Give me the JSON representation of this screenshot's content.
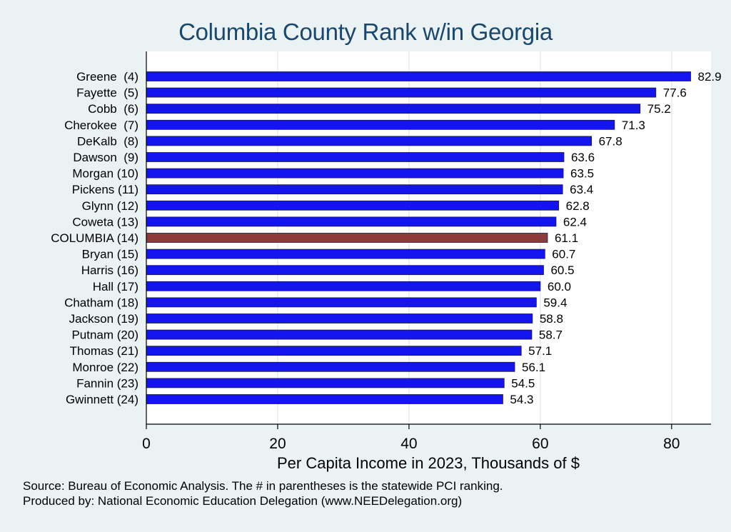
{
  "chart_data": {
    "type": "bar",
    "orientation": "horizontal",
    "title": "Columbia County Rank w/in Georgia",
    "xlabel": "Per Capita Income in 2023, Thousands of $",
    "ylabel": "",
    "xlim": [
      0,
      86
    ],
    "xticks": [
      0,
      20,
      40,
      60,
      80
    ],
    "grid": true,
    "categories": [
      "Greene  (4)",
      "Fayette  (5)",
      "Cobb  (6)",
      "Cherokee  (7)",
      "DeKalb  (8)",
      "Dawson  (9)",
      "Morgan (10)",
      "Pickens (11)",
      "Glynn (12)",
      "Coweta (13)",
      "COLUMBIA (14)",
      "Bryan (15)",
      "Harris (16)",
      "Hall (17)",
      "Chatham (18)",
      "Jackson (19)",
      "Putnam (20)",
      "Thomas (21)",
      "Monroe (22)",
      "Fannin (23)",
      "Gwinnett (24)"
    ],
    "values": [
      82.9,
      77.6,
      75.2,
      71.3,
      67.8,
      63.6,
      63.5,
      63.4,
      62.8,
      62.4,
      61.1,
      60.7,
      60.5,
      60.0,
      59.4,
      58.8,
      58.7,
      57.1,
      56.1,
      54.5,
      54.3
    ],
    "value_labels": [
      "82.9",
      "77.6",
      "75.2",
      "71.3",
      "67.8",
      "63.6",
      "63.5",
      "63.4",
      "62.8",
      "62.4",
      "61.1",
      "60.7",
      "60.5",
      "60.0",
      "59.4",
      "58.8",
      "58.7",
      "57.1",
      "56.1",
      "54.5",
      "54.3"
    ],
    "highlight_index": 10,
    "colors": {
      "bar": "#1414ee",
      "highlight": "#8f3a3a",
      "background": "#eaf2f3",
      "plot_background": "#ffffff",
      "grid": "#e3ecee",
      "title": "#1a476f"
    }
  },
  "notes": {
    "source": "Source: Bureau of Economic Analysis. The # in parentheses is the statewide PCI ranking.",
    "produced_by": "Produced by: National Economic Education Delegation (www.NEEDelegation.org)"
  }
}
